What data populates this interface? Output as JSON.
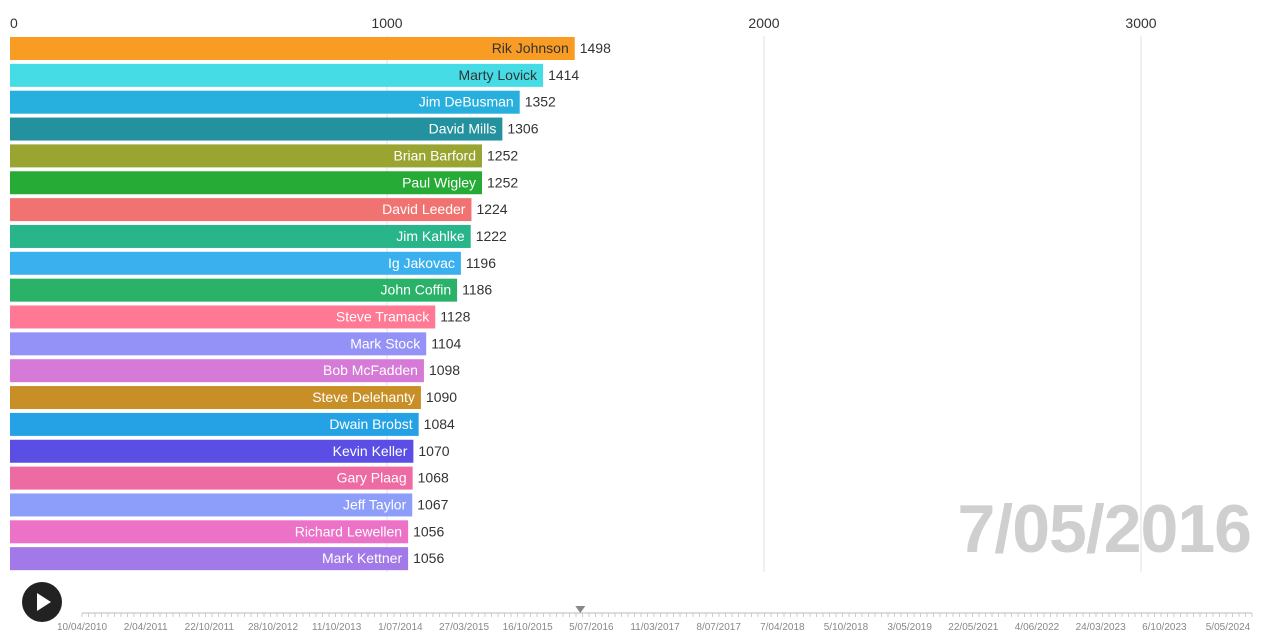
{
  "chart_data": {
    "type": "bar",
    "orientation": "horizontal",
    "categories": [
      "Rik Johnson",
      "Marty Lovick",
      "Jim DeBusman",
      "David Mills",
      "Brian Barford",
      "Paul Wigley",
      "David Leeder",
      "Jim Kahlke",
      "Ig Jakovac",
      "John Coffin",
      "Steve Tramack",
      "Mark Stock",
      "Bob McFadden",
      "Steve Delehanty",
      "Dwain Brobst",
      "Kevin Keller",
      "Gary Plaag",
      "Jeff Taylor",
      "Richard Lewellen",
      "Mark Kettner"
    ],
    "values": [
      1498,
      1414,
      1352,
      1306,
      1252,
      1252,
      1224,
      1222,
      1196,
      1186,
      1128,
      1104,
      1098,
      1090,
      1084,
      1070,
      1068,
      1067,
      1056,
      1056
    ],
    "colors": [
      "#f99c24",
      "#45dce6",
      "#27b0dd",
      "#24929e",
      "#9aa430",
      "#25ab36",
      "#f07372",
      "#27b589",
      "#3bb0ef",
      "#2ab269",
      "#ff7894",
      "#9592f7",
      "#d67ad8",
      "#c88f27",
      "#25a2e5",
      "#5a4ee4",
      "#ee6aa3",
      "#8c9ef9",
      "#ec72c7",
      "#a279e8"
    ],
    "label_colors": [
      "#333333",
      "#333333",
      "#ffffff",
      "#ffffff",
      "#ffffff",
      "#ffffff",
      "#ffffff",
      "#ffffff",
      "#ffffff",
      "#ffffff",
      "#ffffff",
      "#ffffff",
      "#ffffff",
      "#ffffff",
      "#ffffff",
      "#ffffff",
      "#ffffff",
      "#ffffff",
      "#ffffff",
      "#ffffff"
    ],
    "x_ticks": [
      "0",
      "1000",
      "2000",
      "3000"
    ],
    "xlim": [
      0,
      3300
    ],
    "grid": true,
    "title": "",
    "xlabel": "",
    "ylabel": ""
  },
  "date_label": "7/05/2016",
  "timeline": {
    "labels": [
      "10/04/2010",
      "2/04/2011",
      "22/10/2011",
      "28/10/2012",
      "11/10/2013",
      "1/07/2014",
      "27/03/2015",
      "16/10/2015",
      "5/07/2016",
      "11/03/2017",
      "8/07/2017",
      "7/04/2018",
      "5/10/2018",
      "3/05/2019",
      "22/05/2021",
      "4/06/2022",
      "24/03/2023",
      "6/10/2023",
      "5/05/2024"
    ],
    "current_position": 0.4259
  },
  "controls": {
    "play_icon": "play-icon"
  }
}
